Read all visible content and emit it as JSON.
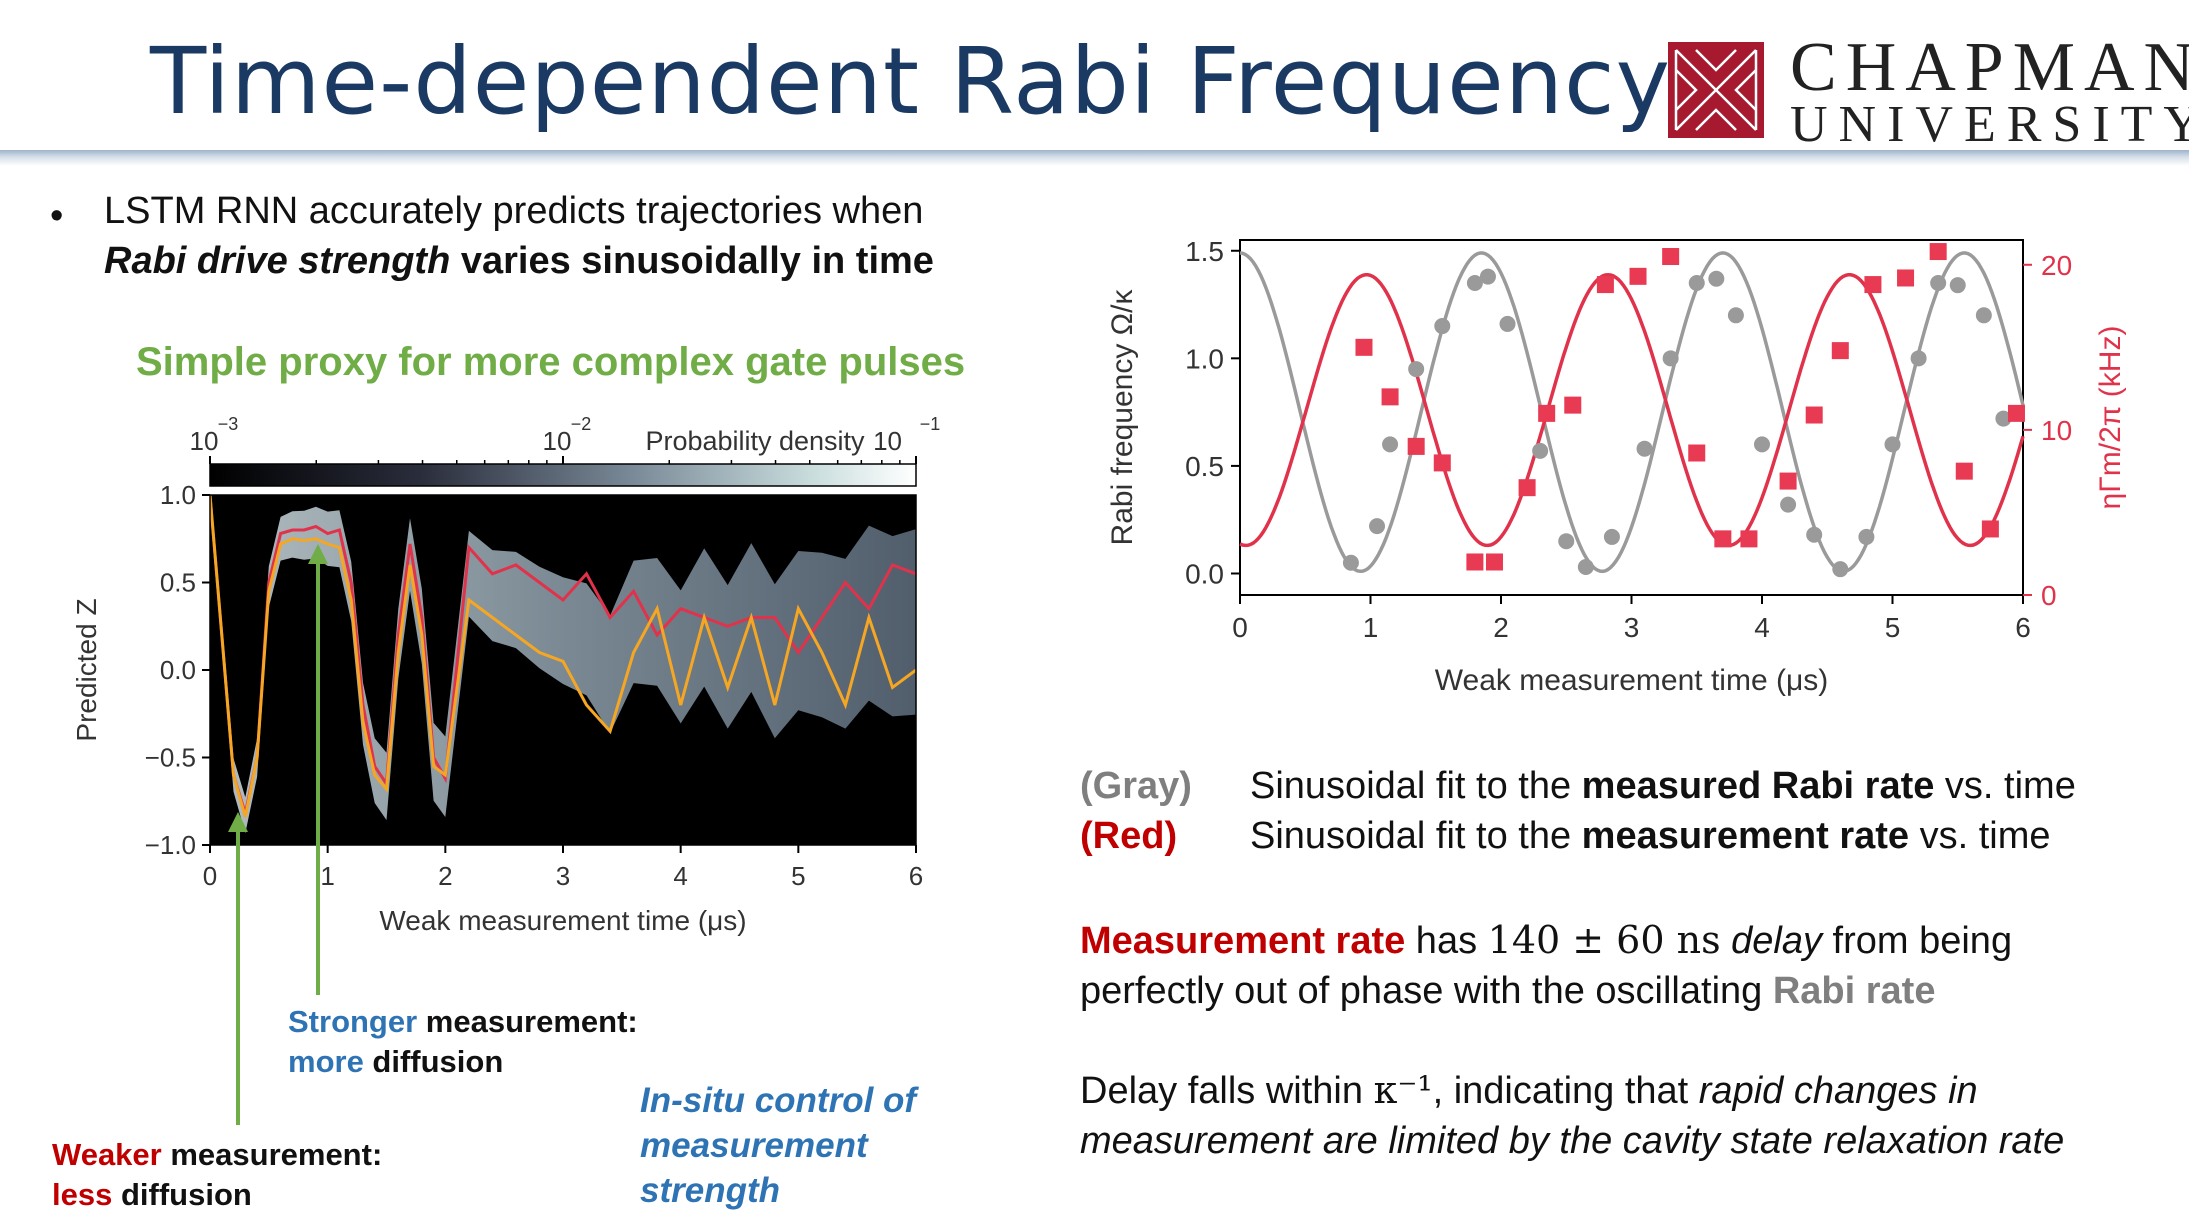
{
  "title": "Time-dependent Rabi Frequency",
  "logo": {
    "line1": "CHAPMAN",
    "line2": "UNIVERSITY",
    "color": "#a6192e"
  },
  "bullet": {
    "marker": "•",
    "line1": "LSTM RNN accurately predicts trajectories when",
    "line2_italic": "Rabi drive strength",
    "line2_rest": " varies sinusoidally in time"
  },
  "subtitle": "Simple proxy for more complex gate pulses",
  "annotations": {
    "stronger_word": "Stronger",
    "stronger_rest": " measurement:",
    "more_word": "more",
    "more_rest": " diffusion",
    "weaker_word": "Weaker",
    "weaker_rest": " measurement:",
    "less_word": "less",
    "less_rest": " diffusion",
    "insitu_1": "In-situ control of",
    "insitu_2": "measurement",
    "insitu_3": "strength"
  },
  "legend": {
    "gray_key": "(Gray)",
    "gray_pre": "Sinusoidal fit to the ",
    "gray_bold": "measured Rabi rate",
    "gray_post": " vs. time",
    "red_key": "(Red)",
    "red_pre": "Sinusoidal fit to the ",
    "red_bold": "measurement rate",
    "red_post": " vs. time"
  },
  "paragraph1": {
    "red_bold": "Measurement rate",
    "has": " has ",
    "math": "140 ± 60 ns",
    "delay_italic": " delay",
    "rest1": " from being",
    "line2": "perfectly out of phase with the oscillating ",
    "gray_bold": "Rabi rate"
  },
  "paragraph2": {
    "pre": "Delay falls within ",
    "math": "κ⁻¹",
    "mid": ", indicating that ",
    "italic1": "rapid changes in",
    "italic2": "measurement are limited by the cavity state relaxation rate"
  },
  "colors": {
    "title": "#1b3a63",
    "green": "#70ad47",
    "blue": "#2e74b5",
    "red": "#c00000",
    "gray": "#7f7f7f",
    "plot_red": "#e0334b",
    "plot_gray": "#9a9a9a",
    "orange": "#f5a623"
  },
  "chart_data": [
    {
      "type": "heatmap",
      "xlabel": "Weak measurement time (μs)",
      "ylabel": "Predicted Z",
      "xlim": [
        0,
        6
      ],
      "ylim": [
        -1,
        1
      ],
      "xticks": [
        "0",
        "1",
        "2",
        "3",
        "4",
        "5",
        "6"
      ],
      "yticks": [
        "1.0",
        "0.5",
        "0.0",
        "−0.5",
        "−1.0"
      ],
      "colorbar": {
        "label": "Probability density",
        "ticks": [
          "10",
          "10",
          "10"
        ],
        "exponents": [
          "−3",
          "−2",
          "−1"
        ],
        "range": [
          0.001,
          0.1
        ]
      },
      "series": [
        {
          "name": "red trajectory",
          "x": [
            0,
            0.1,
            0.2,
            0.3,
            0.4,
            0.5,
            0.6,
            0.7,
            0.8,
            0.9,
            1.0,
            1.1,
            1.2,
            1.3,
            1.4,
            1.5,
            1.6,
            1.7,
            1.8,
            1.9,
            2.0,
            2.2,
            2.4,
            2.6,
            2.8,
            3.0,
            3.2,
            3.4,
            3.6,
            3.8,
            4.0,
            4.2,
            4.4,
            4.6,
            4.8,
            5.0,
            5.2,
            5.4,
            5.6,
            5.8,
            6.0
          ],
          "y": [
            1.0,
            0.2,
            -0.6,
            -0.82,
            -0.5,
            0.5,
            0.78,
            0.8,
            0.8,
            0.82,
            0.78,
            0.8,
            0.5,
            -0.2,
            -0.55,
            -0.65,
            0.2,
            0.72,
            0.3,
            -0.5,
            -0.62,
            0.7,
            0.55,
            0.6,
            0.5,
            0.4,
            0.55,
            0.3,
            0.45,
            0.2,
            0.35,
            0.3,
            0.25,
            0.3,
            0.3,
            0.1,
            0.3,
            0.5,
            0.35,
            0.6,
            0.55
          ]
        },
        {
          "name": "orange trajectory",
          "x": [
            0,
            0.1,
            0.2,
            0.3,
            0.4,
            0.5,
            0.6,
            0.7,
            0.8,
            0.9,
            1.0,
            1.1,
            1.2,
            1.3,
            1.4,
            1.5,
            1.6,
            1.7,
            1.8,
            1.9,
            2.0,
            2.2,
            2.4,
            2.6,
            2.8,
            3.0,
            3.2,
            3.4,
            3.6,
            3.8,
            4.0,
            4.2,
            4.4,
            4.6,
            4.8,
            5.0,
            5.2,
            5.4,
            5.6,
            5.8,
            6.0
          ],
          "y": [
            1.0,
            0.2,
            -0.6,
            -0.84,
            -0.5,
            0.45,
            0.72,
            0.75,
            0.74,
            0.75,
            0.72,
            0.7,
            0.4,
            -0.3,
            -0.6,
            -0.68,
            0.1,
            0.6,
            0.2,
            -0.55,
            -0.6,
            0.4,
            0.3,
            0.2,
            0.1,
            0.05,
            -0.2,
            -0.35,
            0.1,
            0.35,
            -0.2,
            0.3,
            -0.1,
            0.3,
            -0.2,
            0.35,
            0.1,
            -0.2,
            0.3,
            -0.1,
            0.0
          ]
        }
      ]
    },
    {
      "type": "line",
      "xlabel": "Weak measurement time (μs)",
      "ylabel": "Rabi frequency Ω/κ",
      "ylabel_right": "ηΓm/2π (kHz)",
      "xlim": [
        0,
        6
      ],
      "ylim": [
        -0.1,
        1.55
      ],
      "ylim_right": [
        0,
        21.5
      ],
      "xticks": [
        "0",
        "1",
        "2",
        "3",
        "4",
        "5",
        "6"
      ],
      "yticks": [
        "0.0",
        "0.5",
        "1.0",
        "1.5"
      ],
      "yticks_right": [
        "0",
        "10",
        "20"
      ],
      "series": [
        {
          "name": "Rabi frequency points (gray)",
          "axis": "left",
          "x": [
            0.85,
            1.05,
            1.15,
            1.35,
            1.55,
            1.8,
            1.9,
            2.05,
            2.3,
            2.5,
            2.65,
            2.85,
            3.1,
            3.3,
            3.5,
            3.65,
            3.8,
            4.0,
            4.2,
            4.4,
            4.6,
            4.8,
            5.0,
            5.2,
            5.35,
            5.5,
            5.7,
            5.85
          ],
          "y": [
            0.05,
            0.22,
            0.6,
            0.95,
            1.15,
            1.35,
            1.38,
            1.16,
            0.57,
            0.15,
            0.03,
            0.17,
            0.58,
            1.0,
            1.35,
            1.37,
            1.2,
            0.6,
            0.32,
            0.18,
            0.02,
            0.17,
            0.6,
            1.0,
            1.35,
            1.34,
            1.2,
            0.72
          ]
        },
        {
          "name": "Measurement rate points (red)",
          "axis": "right",
          "x": [
            0.95,
            1.15,
            1.35,
            1.55,
            1.8,
            1.95,
            2.2,
            2.35,
            2.55,
            2.8,
            3.05,
            3.3,
            3.5,
            3.7,
            3.9,
            4.2,
            4.4,
            4.6,
            4.85,
            5.1,
            5.35,
            5.55,
            5.75,
            5.95
          ],
          "y": [
            15,
            12,
            9,
            8,
            2,
            2,
            6.5,
            11,
            11.5,
            18.8,
            19.3,
            20.5,
            8.6,
            3.4,
            3.4,
            6.9,
            10.9,
            14.8,
            18.8,
            19.2,
            20.8,
            7.5,
            4,
            11
          ]
        },
        {
          "name": "Rabi fit (gray)",
          "axis": "left",
          "model": "sine",
          "offset": 0.75,
          "amplitude": 0.74,
          "period_us": 1.85,
          "phase_peak_us": 0.0
        },
        {
          "name": "Measurement fit (red)",
          "axis": "right",
          "model": "sine",
          "offset": 11.2,
          "amplitude": 8.2,
          "period_us": 1.85,
          "phase_peak_us": 0.97
        }
      ]
    }
  ]
}
